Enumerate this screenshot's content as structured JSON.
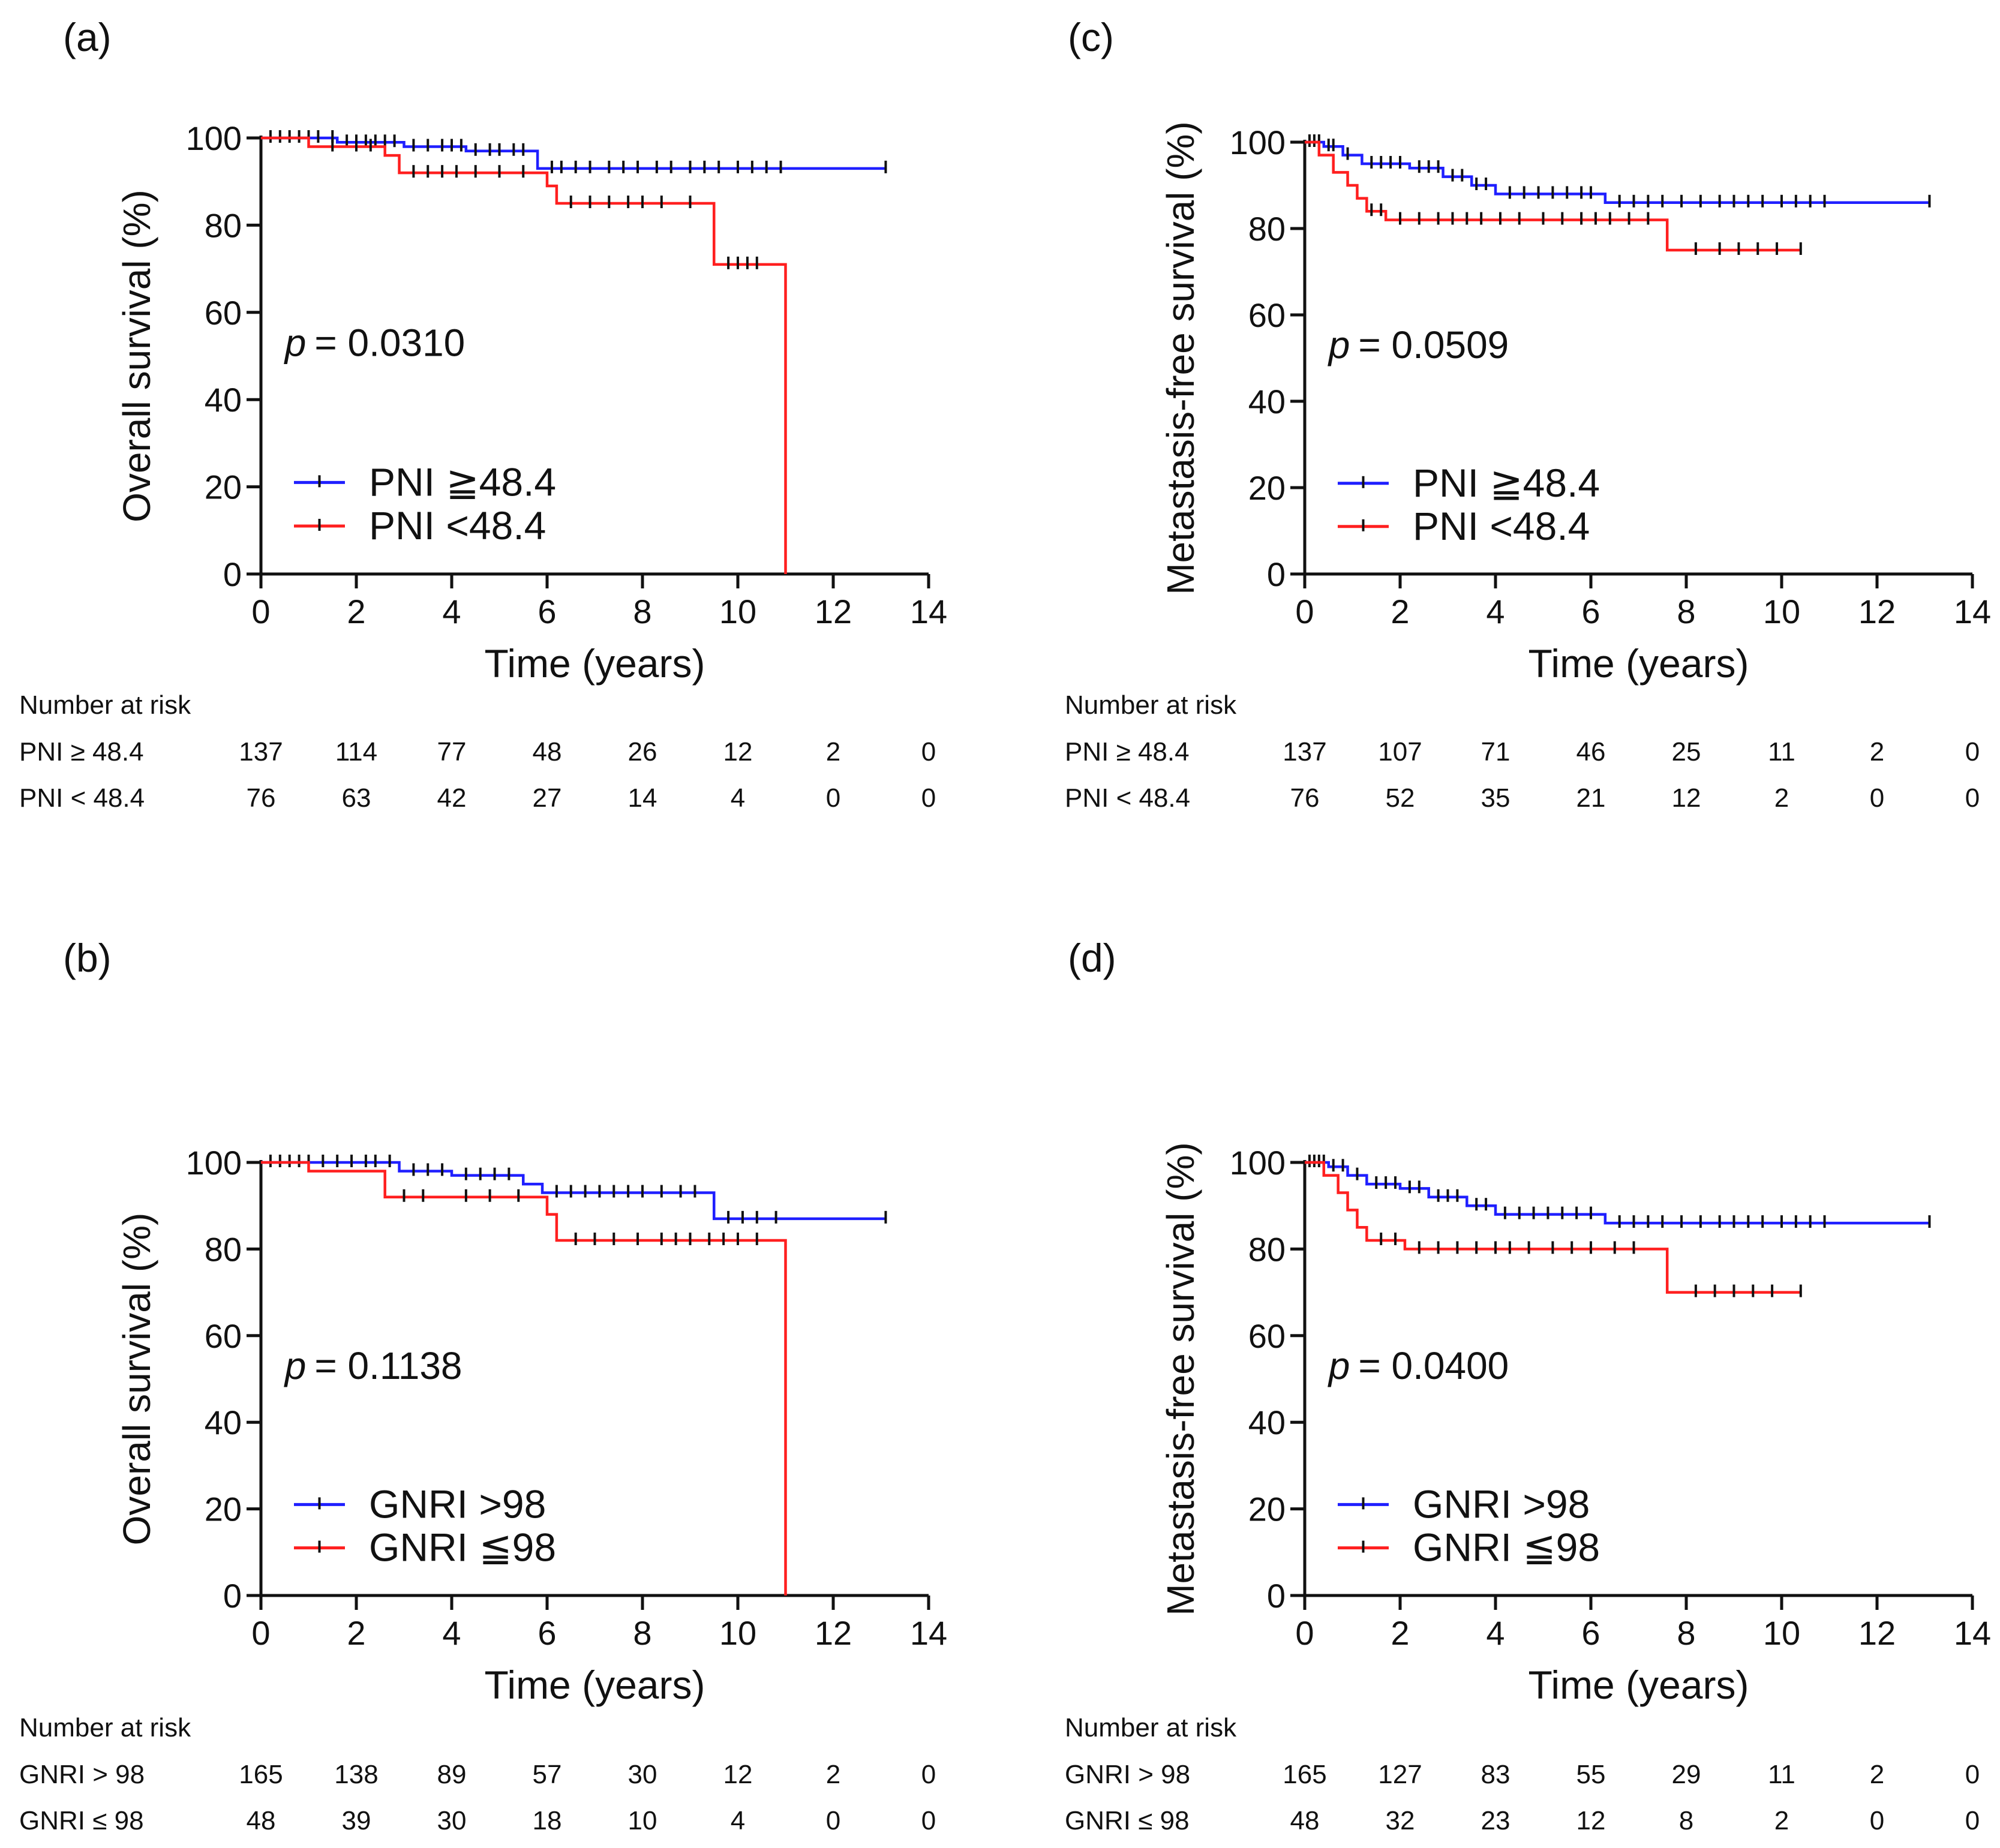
{
  "colors": {
    "high": "#1f1fff",
    "low": "#ff1f1f",
    "axis": "#111111",
    "censor": "#111111"
  },
  "panels": [
    {
      "label": "(a)",
      "chart_data": {
        "type": "line",
        "subtype": "kaplan-meier",
        "xlabel": "Time (years)",
        "ylabel": "Overall survival (%)",
        "xlim": [
          0,
          14
        ],
        "ylim": [
          0,
          100
        ],
        "xticks": [
          0,
          2,
          4,
          6,
          8,
          10,
          12,
          14
        ],
        "yticks": [
          0,
          20,
          40,
          60,
          80,
          100
        ],
        "p_label": "p",
        "p_value": "= 0.0310",
        "legend_position": "bottom-left",
        "series": [
          {
            "name": "PNI ≧48.4",
            "color_key": "high",
            "steps": [
              [
                0,
                100
              ],
              [
                1.6,
                99
              ],
              [
                3.0,
                98
              ],
              [
                4.3,
                97
              ],
              [
                5.8,
                93
              ],
              [
                13.1,
                93
              ]
            ],
            "censor": [
              0.2,
              0.4,
              0.6,
              0.8,
              1.0,
              1.2,
              1.5,
              1.8,
              2.0,
              2.2,
              2.4,
              2.6,
              2.8,
              3.2,
              3.5,
              3.8,
              4.0,
              4.2,
              4.5,
              4.8,
              5.0,
              5.3,
              5.5,
              6.1,
              6.3,
              6.6,
              6.9,
              7.3,
              7.6,
              7.9,
              8.3,
              8.6,
              9.0,
              9.3,
              9.6,
              10.0,
              10.3,
              10.6,
              10.9,
              13.1
            ]
          },
          {
            "name": "PNI <48.4",
            "color_key": "low",
            "steps": [
              [
                0,
                100
              ],
              [
                1.0,
                98
              ],
              [
                2.6,
                96
              ],
              [
                2.9,
                92
              ],
              [
                6.0,
                89
              ],
              [
                6.2,
                85
              ],
              [
                9.5,
                71
              ],
              [
                11.0,
                0
              ]
            ],
            "censor": [
              1.5,
              2.0,
              2.3,
              3.2,
              3.5,
              3.8,
              4.1,
              4.5,
              5.0,
              5.5,
              6.5,
              6.9,
              7.3,
              7.7,
              8.0,
              8.4,
              9.0,
              9.8,
              10.0,
              10.2,
              10.4
            ]
          }
        ],
        "risk_table": {
          "title": "Number at risk",
          "times": [
            0,
            2,
            4,
            6,
            8,
            10,
            12,
            14
          ],
          "rows": [
            {
              "label": "PNI ≥ 48.4",
              "values": [
                "137",
                "114",
                "77",
                "48",
                "26",
                "12",
                "2",
                "0"
              ]
            },
            {
              "label": "PNI < 48.4",
              "values": [
                "76",
                "63",
                "42",
                "27",
                "14",
                "4",
                "0",
                "0"
              ]
            }
          ]
        }
      }
    },
    {
      "label": "(c)",
      "chart_data": {
        "type": "line",
        "subtype": "kaplan-meier",
        "xlabel": "Time (years)",
        "ylabel": "Metastasis-free survival (%)",
        "xlim": [
          0,
          14
        ],
        "ylim": [
          0,
          100
        ],
        "xticks": [
          0,
          2,
          4,
          6,
          8,
          10,
          12,
          14
        ],
        "yticks": [
          0,
          20,
          40,
          60,
          80,
          100
        ],
        "p_label": "p",
        "p_value": "= 0.0509",
        "legend_position": "bottom-left",
        "series": [
          {
            "name": "PNI ≧48.4",
            "color_key": "high",
            "steps": [
              [
                0,
                100
              ],
              [
                0.4,
                99
              ],
              [
                0.8,
                97
              ],
              [
                1.2,
                95
              ],
              [
                2.2,
                94
              ],
              [
                2.9,
                92
              ],
              [
                3.5,
                90
              ],
              [
                4.0,
                88
              ],
              [
                6.3,
                86
              ],
              [
                13.1,
                86
              ]
            ],
            "censor": [
              0.1,
              0.2,
              0.3,
              0.5,
              0.6,
              0.9,
              1.4,
              1.6,
              1.8,
              2.0,
              2.4,
              2.6,
              2.8,
              3.1,
              3.3,
              3.6,
              3.8,
              4.3,
              4.6,
              4.9,
              5.2,
              5.5,
              5.8,
              6.0,
              6.6,
              6.9,
              7.2,
              7.5,
              7.9,
              8.3,
              8.7,
              9.0,
              9.3,
              9.6,
              10.0,
              10.3,
              10.6,
              10.9,
              13.1
            ]
          },
          {
            "name": "PNI <48.4",
            "color_key": "low",
            "steps": [
              [
                0,
                100
              ],
              [
                0.3,
                97
              ],
              [
                0.6,
                93
              ],
              [
                0.9,
                90
              ],
              [
                1.1,
                87
              ],
              [
                1.3,
                84
              ],
              [
                1.7,
                82
              ],
              [
                7.6,
                75
              ],
              [
                10.4,
                75
              ]
            ],
            "censor": [
              1.4,
              1.6,
              2.0,
              2.4,
              2.8,
              3.1,
              3.4,
              3.7,
              4.1,
              4.5,
              5.0,
              5.4,
              5.8,
              6.1,
              6.4,
              6.8,
              7.2,
              8.2,
              8.7,
              9.1,
              9.5,
              9.9,
              10.4
            ]
          }
        ],
        "risk_table": {
          "title": "Number at risk",
          "times": [
            0,
            2,
            4,
            6,
            8,
            10,
            12,
            14
          ],
          "rows": [
            {
              "label": "PNI ≥ 48.4",
              "values": [
                "137",
                "107",
                "71",
                "46",
                "25",
                "11",
                "2",
                "0"
              ]
            },
            {
              "label": "PNI < 48.4",
              "values": [
                "76",
                "52",
                "35",
                "21",
                "12",
                "2",
                "0",
                "0"
              ]
            }
          ]
        }
      }
    },
    {
      "label": "(b)",
      "chart_data": {
        "type": "line",
        "subtype": "kaplan-meier",
        "xlabel": "Time (years)",
        "ylabel": "Overall survival (%)",
        "xlim": [
          0,
          14
        ],
        "ylim": [
          0,
          100
        ],
        "xticks": [
          0,
          2,
          4,
          6,
          8,
          10,
          12,
          14
        ],
        "yticks": [
          0,
          20,
          40,
          60,
          80,
          100
        ],
        "p_label": "p",
        "p_value": "= 0.1138",
        "legend_position": "bottom-left",
        "series": [
          {
            "name": "GNRI >98",
            "color_key": "high",
            "steps": [
              [
                0,
                100
              ],
              [
                2.9,
                98
              ],
              [
                4.0,
                97
              ],
              [
                5.5,
                95
              ],
              [
                5.9,
                93
              ],
              [
                9.5,
                87
              ],
              [
                13.1,
                87
              ]
            ],
            "censor": [
              0.2,
              0.4,
              0.6,
              0.8,
              1.0,
              1.3,
              1.6,
              1.9,
              2.2,
              2.4,
              2.7,
              3.2,
              3.5,
              3.8,
              4.3,
              4.6,
              4.9,
              5.2,
              6.2,
              6.5,
              6.8,
              7.1,
              7.4,
              7.7,
              8.0,
              8.4,
              8.8,
              9.1,
              9.8,
              10.1,
              10.4,
              10.8,
              13.1
            ]
          },
          {
            "name": "GNRI ≦98",
            "color_key": "low",
            "steps": [
              [
                0,
                100
              ],
              [
                1.0,
                98
              ],
              [
                2.6,
                92
              ],
              [
                6.0,
                88
              ],
              [
                6.2,
                82
              ],
              [
                11.0,
                0
              ]
            ],
            "censor": [
              3.0,
              3.4,
              4.3,
              4.8,
              5.4,
              6.6,
              7.0,
              7.4,
              7.9,
              8.4,
              8.7,
              9.0,
              9.4,
              9.7,
              10.0,
              10.4
            ]
          }
        ],
        "risk_table": {
          "title": "Number at risk",
          "times": [
            0,
            2,
            4,
            6,
            8,
            10,
            12,
            14
          ],
          "rows": [
            {
              "label": "GNRI > 98",
              "values": [
                "165",
                "138",
                "89",
                "57",
                "30",
                "12",
                "2",
                "0"
              ]
            },
            {
              "label": "GNRI ≤ 98",
              "values": [
                "48",
                "39",
                "30",
                "18",
                "10",
                "4",
                "0",
                "0"
              ]
            }
          ]
        }
      }
    },
    {
      "label": "(d)",
      "chart_data": {
        "type": "line",
        "subtype": "kaplan-meier",
        "xlabel": "Time (years)",
        "ylabel": "Metastasis-free survival (%)",
        "xlim": [
          0,
          14
        ],
        "ylim": [
          0,
          100
        ],
        "xticks": [
          0,
          2,
          4,
          6,
          8,
          10,
          12,
          14
        ],
        "yticks": [
          0,
          20,
          40,
          60,
          80,
          100
        ],
        "p_label": "p",
        "p_value": "= 0.0400",
        "legend_position": "bottom-left",
        "series": [
          {
            "name": "GNRI >98",
            "color_key": "high",
            "steps": [
              [
                0,
                100
              ],
              [
                0.5,
                99
              ],
              [
                0.9,
                97
              ],
              [
                1.3,
                95
              ],
              [
                2.0,
                94
              ],
              [
                2.6,
                92
              ],
              [
                3.4,
                90
              ],
              [
                4.0,
                88
              ],
              [
                6.3,
                86
              ],
              [
                13.1,
                86
              ]
            ],
            "censor": [
              0.1,
              0.2,
              0.3,
              0.4,
              0.6,
              0.8,
              1.1,
              1.5,
              1.7,
              1.9,
              2.2,
              2.4,
              2.8,
              3.0,
              3.2,
              3.6,
              3.8,
              4.2,
              4.5,
              4.8,
              5.1,
              5.4,
              5.7,
              6.0,
              6.6,
              6.9,
              7.2,
              7.5,
              7.9,
              8.3,
              8.7,
              9.0,
              9.3,
              9.6,
              10.0,
              10.3,
              10.6,
              10.9,
              13.1
            ]
          },
          {
            "name": "GNRI ≦98",
            "color_key": "low",
            "steps": [
              [
                0,
                100
              ],
              [
                0.4,
                97
              ],
              [
                0.7,
                93
              ],
              [
                0.9,
                89
              ],
              [
                1.1,
                85
              ],
              [
                1.3,
                82
              ],
              [
                2.1,
                80
              ],
              [
                7.6,
                70
              ],
              [
                10.4,
                70
              ]
            ],
            "censor": [
              1.6,
              1.9,
              2.4,
              2.8,
              3.2,
              3.6,
              4.0,
              4.3,
              4.7,
              5.2,
              5.6,
              6.0,
              6.5,
              6.9,
              8.2,
              8.6,
              9.0,
              9.4,
              9.8,
              10.4
            ]
          }
        ],
        "risk_table": {
          "title": "Number at risk",
          "times": [
            0,
            2,
            4,
            6,
            8,
            10,
            12,
            14
          ],
          "rows": [
            {
              "label": "GNRI > 98",
              "values": [
                "165",
                "127",
                "83",
                "55",
                "29",
                "11",
                "2",
                "0"
              ]
            },
            {
              "label": "GNRI ≤ 98",
              "values": [
                "48",
                "32",
                "23",
                "12",
                "8",
                "2",
                "0",
                "0"
              ]
            }
          ]
        }
      }
    }
  ]
}
